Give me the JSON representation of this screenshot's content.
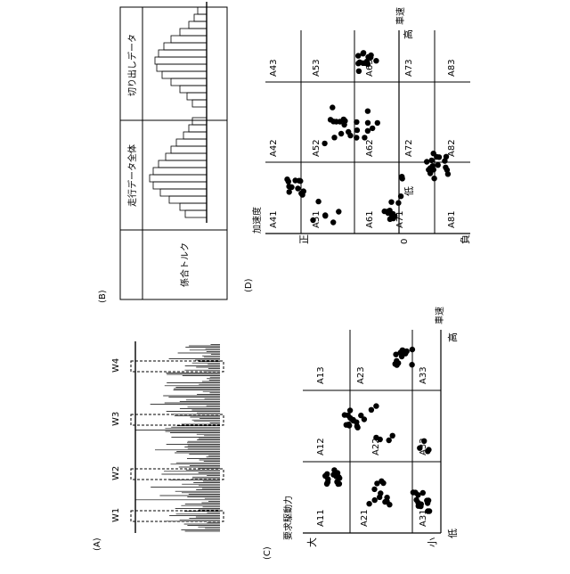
{
  "panel_a": {
    "label": "(A)",
    "windows": [
      "W1",
      "W2",
      "W3",
      "W4"
    ]
  },
  "panel_b": {
    "label": "(B)",
    "row_header": "係合トルク",
    "col_all": "走行データ全体",
    "col_cut": "切り出しデータ"
  },
  "panel_c": {
    "label": "(C)",
    "y_axis_title": "要求駆動力",
    "y_high": "大",
    "y_low": "小",
    "x_axis_title": "車速",
    "x_low": "低",
    "x_high": "高",
    "regions": [
      "A11",
      "A12",
      "A13",
      "A21",
      "A22",
      "A23",
      "A31",
      "A32",
      "A33"
    ]
  },
  "panel_d": {
    "label": "(D)",
    "y_axis_title": "加速度",
    "y_pos": "正",
    "y_zero": "0",
    "y_neg": "負",
    "x_axis_title": "車速",
    "x_low": "低",
    "x_high": "高",
    "regions": [
      "A41",
      "A42",
      "A43",
      "A51",
      "A52",
      "A53",
      "A61",
      "A62",
      "A63",
      "A71",
      "A72",
      "A73",
      "A81",
      "A82",
      "A83"
    ]
  }
}
